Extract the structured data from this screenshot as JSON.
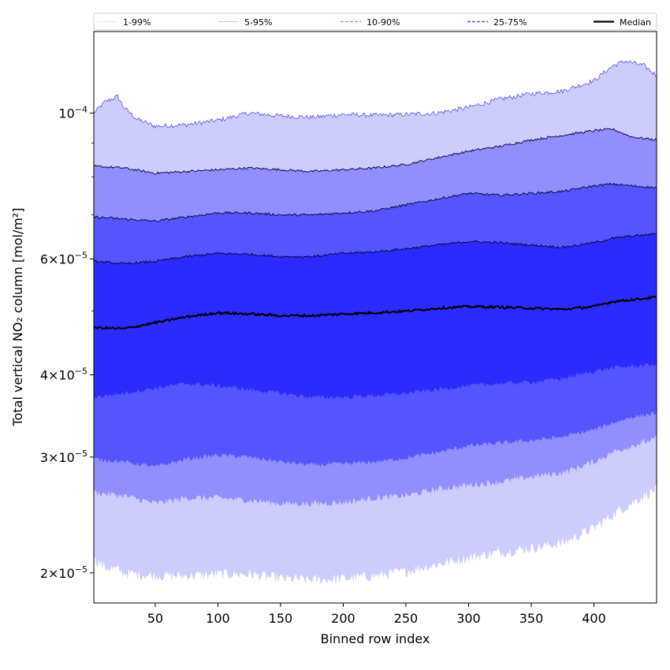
{
  "chart_data": {
    "type": "area",
    "xlabel": "Binned row index",
    "ylabel": "Total vertical NO₂ column [mol/m²]",
    "x_scale": "linear",
    "y_scale": "log",
    "xlim": [
      1,
      450
    ],
    "ylim": [
      1.8e-05,
      0.000133
    ],
    "x_ticks": [
      50,
      100,
      150,
      200,
      250,
      300,
      350,
      400
    ],
    "x_tick_labels": [
      "50",
      "100",
      "150",
      "200",
      "250",
      "300",
      "350",
      "400"
    ],
    "y_ticks": [
      2e-05,
      3e-05,
      4e-05,
      6e-05,
      0.0001
    ],
    "y_tick_labels": [
      {
        "mantissa": "2",
        "exp": "−5"
      },
      {
        "mantissa": "3",
        "exp": "−5"
      },
      {
        "mantissa": "4",
        "exp": "−5"
      },
      {
        "mantissa": "6",
        "exp": "−5"
      },
      {
        "mantissa": "10",
        "exp": "−4"
      }
    ],
    "y_minor_ticks": [
      5e-05,
      7e-05,
      8e-05,
      9e-05
    ],
    "grid": false,
    "legend_position": "top",
    "legend": [
      {
        "label": "1-99%",
        "color": "#ccccff",
        "style": "solid",
        "width": 0.6
      },
      {
        "label": "5-95%",
        "color": "#8f8fff",
        "style": "solid",
        "width": 0.6
      },
      {
        "label": "10-90%",
        "color": "#8f8fff",
        "style": "dashed",
        "width": 1.2
      },
      {
        "label": "25-75%",
        "color": "#5555ff",
        "style": "dashed",
        "width": 1.5
      },
      {
        "label": "Median",
        "color": "#000000",
        "style": "solid",
        "width": 2.2
      }
    ],
    "bands": [
      {
        "name": "1-99%",
        "fill": "#ccccff",
        "edge": "#2b2bdd",
        "x": [
          1,
          10,
          20,
          25,
          35,
          50,
          75,
          100,
          125,
          150,
          175,
          200,
          225,
          250,
          275,
          300,
          325,
          350,
          375,
          400,
          415,
          425,
          440,
          450
        ],
        "lower": [
          2.1e-05,
          2.04e-05,
          2.02e-05,
          2e-05,
          1.99e-05,
          1.98e-05,
          1.98e-05,
          1.99e-05,
          1.99e-05,
          1.96e-05,
          1.95e-05,
          1.96e-05,
          1.98e-05,
          2.01e-05,
          2.06e-05,
          2.11e-05,
          2.15e-05,
          2.18e-05,
          2.22e-05,
          2.34e-05,
          2.45e-05,
          2.52e-05,
          2.62e-05,
          2.68e-05
        ],
        "upper": [
          0.0001,
          0.000104,
          0.000106,
          0.000102,
          9.8e-05,
          9.55e-05,
          9.6e-05,
          9.75e-05,
          0.0001,
          9.9e-05,
          9.85e-05,
          9.95e-05,
          9.92e-05,
          9.95e-05,
          0.0001,
          0.000102,
          0.000105,
          0.000107,
          0.000108,
          0.000112,
          0.000118,
          0.00012,
          0.000118,
          0.000114
        ]
      },
      {
        "name": "5-95%",
        "fill": "#8f8fff",
        "edge": "#00003a",
        "x": [
          1,
          25,
          50,
          75,
          100,
          125,
          150,
          175,
          200,
          225,
          250,
          275,
          300,
          325,
          350,
          375,
          400,
          415,
          430,
          450
        ],
        "lower": [
          2.65e-05,
          2.62e-05,
          2.55e-05,
          2.6e-05,
          2.6e-05,
          2.58e-05,
          2.55e-05,
          2.55e-05,
          2.56e-05,
          2.6e-05,
          2.62e-05,
          2.68e-05,
          2.72e-05,
          2.75e-05,
          2.8e-05,
          2.84e-05,
          2.95e-05,
          3.05e-05,
          3.12e-05,
          3.2e-05
        ],
        "upper": [
          8.3e-05,
          8.25e-05,
          8.1e-05,
          8.15e-05,
          8.2e-05,
          8.25e-05,
          8.2e-05,
          8.15e-05,
          8.2e-05,
          8.25e-05,
          8.35e-05,
          8.55e-05,
          8.75e-05,
          8.9e-05,
          9.1e-05,
          9.25e-05,
          9.4e-05,
          9.45e-05,
          9.2e-05,
          9.1e-05
        ]
      },
      {
        "name": "10-90%",
        "fill": "#5555ff",
        "edge": "#00003a",
        "x": [
          1,
          25,
          50,
          75,
          100,
          125,
          150,
          175,
          200,
          225,
          250,
          275,
          300,
          325,
          350,
          375,
          400,
          415,
          430,
          450
        ],
        "lower": [
          2.98e-05,
          2.95e-05,
          2.9e-05,
          2.98e-05,
          3.02e-05,
          3e-05,
          2.95e-05,
          2.92e-05,
          2.93e-05,
          2.95e-05,
          2.99e-05,
          3.05e-05,
          3.12e-05,
          3.15e-05,
          3.18e-05,
          3.22e-05,
          3.3e-05,
          3.38e-05,
          3.45e-05,
          3.5e-05
        ],
        "upper": [
          6.95e-05,
          6.9e-05,
          6.85e-05,
          6.95e-05,
          7.05e-05,
          7.05e-05,
          7e-05,
          7e-05,
          7.05e-05,
          7.1e-05,
          7.25e-05,
          7.4e-05,
          7.55e-05,
          7.5e-05,
          7.55e-05,
          7.6e-05,
          7.75e-05,
          7.8e-05,
          7.75e-05,
          7.7e-05
        ]
      },
      {
        "name": "25-75%",
        "fill": "#2b2bff",
        "edge": "#00003a",
        "x": [
          1,
          25,
          50,
          75,
          100,
          125,
          150,
          175,
          200,
          225,
          250,
          275,
          300,
          325,
          350,
          375,
          400,
          415,
          430,
          450
        ],
        "lower": [
          3.7e-05,
          3.75e-05,
          3.82e-05,
          3.88e-05,
          3.85e-05,
          3.8e-05,
          3.75e-05,
          3.7e-05,
          3.7e-05,
          3.72e-05,
          3.75e-05,
          3.8e-05,
          3.85e-05,
          3.88e-05,
          3.9e-05,
          3.95e-05,
          4.05e-05,
          4.1e-05,
          4.12e-05,
          4.15e-05
        ],
        "upper": [
          5.95e-05,
          5.9e-05,
          5.95e-05,
          6.05e-05,
          6.12e-05,
          6.1e-05,
          6.05e-05,
          6.05e-05,
          6.12e-05,
          6.15e-05,
          6.22e-05,
          6.3e-05,
          6.38e-05,
          6.35e-05,
          6.3e-05,
          6.25e-05,
          6.35e-05,
          6.45e-05,
          6.5e-05,
          6.55e-05
        ]
      }
    ],
    "median": {
      "name": "Median",
      "color": "#000000",
      "x": [
        1,
        25,
        50,
        75,
        100,
        125,
        150,
        175,
        200,
        225,
        250,
        275,
        300,
        325,
        350,
        375,
        400,
        415,
        430,
        450
      ],
      "y": [
        4.72e-05,
        4.7e-05,
        4.8e-05,
        4.9e-05,
        4.97e-05,
        4.95e-05,
        4.92e-05,
        4.92e-05,
        4.95e-05,
        4.97e-05,
        5e-05,
        5.05e-05,
        5.08e-05,
        5.07e-05,
        5.05e-05,
        5.03e-05,
        5.08e-05,
        5.17e-05,
        5.2e-05,
        5.25e-05
      ]
    }
  }
}
